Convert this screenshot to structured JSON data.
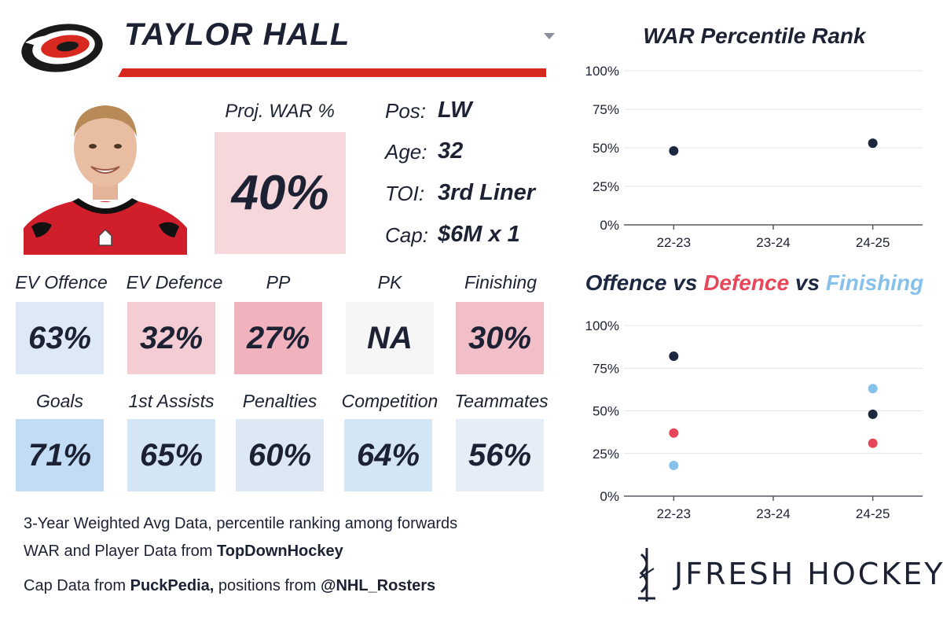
{
  "player": {
    "name": "TAYLOR HALL"
  },
  "proj_war": {
    "label": "Proj. WAR %",
    "value": "40%",
    "color": "#f6d7dc"
  },
  "info": [
    {
      "label": "Pos:",
      "value": "LW"
    },
    {
      "label": "Age:",
      "value": "32"
    },
    {
      "label": "TOI:",
      "value": "3rd Liner"
    },
    {
      "label": "Cap:",
      "value": "$6M x 1"
    }
  ],
  "stats_row1": [
    {
      "label": "EV Offence",
      "value": "63%",
      "color": "#dde9f6"
    },
    {
      "label": "EV Defence",
      "value": "32%",
      "color": "#f4ccd3"
    },
    {
      "label": "PP",
      "value": "27%",
      "color": "#f0b3be"
    },
    {
      "label": "PK",
      "value": "NA",
      "color": "#f6f6f6"
    },
    {
      "label": "Finishing",
      "value": "30%",
      "color": "#f2bfc8"
    }
  ],
  "stats_row2": [
    {
      "label": "Goals",
      "value": "71%",
      "color": "#c3dcf5"
    },
    {
      "label": "1st Assists",
      "value": "65%",
      "color": "#d4e5f6"
    },
    {
      "label": "Penalties",
      "value": "60%",
      "color": "#dce9f5"
    },
    {
      "label": "Competition",
      "value": "64%",
      "color": "#d4e5f6"
    },
    {
      "label": "Teammates",
      "value": "56%",
      "color": "#e5eef7"
    }
  ],
  "footnotes": {
    "line1": "3-Year Weighted Avg Data, percentile ranking among forwards",
    "line2_prefix": "WAR and Player Data from ",
    "line2_bold": "TopDownHockey",
    "line3_prefix": "Cap Data from ",
    "line3_bold1": "PuckPedia,",
    "line3_mid": " positions from ",
    "line3_bold2": "@NHL_Rosters"
  },
  "brand": {
    "name": "JFRESH HOCKEY"
  },
  "colors": {
    "offence": "#1c2740",
    "defence": "#e8475a",
    "finishing": "#86c1ec",
    "header_bar": "#d7291f"
  },
  "chart_data": [
    {
      "type": "scatter",
      "title": "WAR Percentile Rank",
      "categories": [
        "22-23",
        "23-24",
        "24-25"
      ],
      "yticks": [
        "0%",
        "25%",
        "50%",
        "75%",
        "100%"
      ],
      "ylim": [
        0,
        100
      ],
      "grid": true,
      "series": [
        {
          "values": [
            48,
            null,
            53
          ],
          "color": "#1c2740"
        }
      ]
    },
    {
      "type": "scatter",
      "title_parts": [
        {
          "text": "Offence",
          "color": "#1c2740"
        },
        {
          "text": " vs ",
          "color": "#1c2740"
        },
        {
          "text": "Defence",
          "color": "#e8475a"
        },
        {
          "text": " vs ",
          "color": "#1c2740"
        },
        {
          "text": "Finishing",
          "color": "#86c1ec"
        }
      ],
      "categories": [
        "22-23",
        "23-24",
        "24-25"
      ],
      "yticks": [
        "0%",
        "25%",
        "50%",
        "75%",
        "100%"
      ],
      "ylim": [
        0,
        100
      ],
      "grid": true,
      "series": [
        {
          "name": "Offence",
          "values": [
            82,
            null,
            48
          ],
          "color": "#1c2740"
        },
        {
          "name": "Defence",
          "values": [
            37,
            null,
            31
          ],
          "color": "#e8475a"
        },
        {
          "name": "Finishing",
          "values": [
            18,
            null,
            63
          ],
          "color": "#86c1ec"
        }
      ]
    }
  ]
}
